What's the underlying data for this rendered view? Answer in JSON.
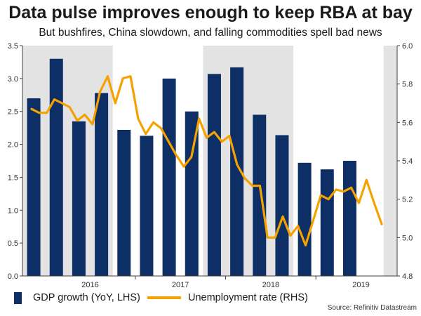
{
  "title": "Data pulse improves enough to keep RBA at bay",
  "subtitle": "But bushfires, China slowdown, and falling commodities spell bad news",
  "source": "Source: Refinitiv Datastream",
  "colors": {
    "gdp": "#0d2f66",
    "unemployment": "#f5a100",
    "shade": "#e3e3e3",
    "axis": "#404040"
  },
  "chart_data": {
    "type": "bar+line",
    "left_axis": {
      "min": 0,
      "max": 3.5,
      "ticks": [
        "0.0",
        "0.5",
        "1.0",
        "1.5",
        "2.0",
        "2.5",
        "3.0",
        "3.5"
      ]
    },
    "right_axis": {
      "min": 4.8,
      "max": 6.0,
      "ticks": [
        "4.8",
        "5.0",
        "5.2",
        "5.4",
        "5.6",
        "5.8",
        "6.0"
      ]
    },
    "x": {
      "start_year": 2015.75,
      "end_year": 2019.9,
      "year_labels": [
        "2016",
        "2017",
        "2018",
        "2019"
      ],
      "shaded_ranges": [
        [
          2015.75,
          2016.75
        ],
        [
          2017.75,
          2018.75
        ],
        [
          2019.75,
          2019.9
        ]
      ]
    },
    "series": [
      {
        "name": "GDP growth (YoY, LHS)",
        "type": "bar",
        "axis": "left",
        "dates": [
          2015.875,
          2016.125,
          2016.375,
          2016.625,
          2016.875,
          2017.125,
          2017.375,
          2017.625,
          2017.875,
          2018.125,
          2018.375,
          2018.625,
          2018.875,
          2019.125,
          2019.375,
          2019.625
        ],
        "values": [
          2.7,
          3.3,
          2.35,
          2.78,
          2.22,
          2.13,
          3.0,
          2.5,
          3.07,
          3.17,
          2.45,
          2.14,
          1.72,
          1.62,
          1.75,
          null
        ]
      },
      {
        "name": "Unemployment rate (RHS)",
        "type": "line",
        "axis": "right",
        "values": [
          5.67,
          5.65,
          5.65,
          5.72,
          5.7,
          5.68,
          5.61,
          5.64,
          5.59,
          5.76,
          5.84,
          5.7,
          5.83,
          5.84,
          5.62,
          5.54,
          5.6,
          5.57,
          5.5,
          5.43,
          5.37,
          5.42,
          5.62,
          5.52,
          5.55,
          5.5,
          5.53,
          5.38,
          5.31,
          5.27,
          5.27,
          5.0,
          5.0,
          5.11,
          5.01,
          5.06,
          4.96,
          5.09,
          5.22,
          5.2,
          5.25,
          5.24,
          5.26,
          5.18,
          5.3,
          5.18,
          5.07
        ]
      }
    ]
  }
}
